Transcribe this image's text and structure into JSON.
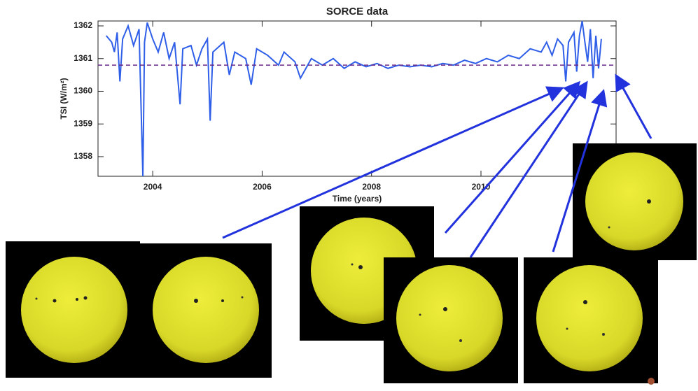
{
  "chart_data": {
    "type": "line",
    "title": "SORCE data",
    "x_label": "Time (years)",
    "y_label": "TSI (W/m²)",
    "x": [
      2003.15,
      2003.25,
      2003.3,
      2003.35,
      2003.4,
      2003.45,
      2003.55,
      2003.65,
      2003.75,
      2003.82,
      2003.85,
      2003.9,
      2004.0,
      2004.1,
      2004.2,
      2004.3,
      2004.4,
      2004.5,
      2004.55,
      2004.7,
      2004.8,
      2004.9,
      2005.0,
      2005.05,
      2005.1,
      2005.3,
      2005.4,
      2005.5,
      2005.7,
      2005.8,
      2005.9,
      2006.1,
      2006.3,
      2006.4,
      2006.6,
      2006.7,
      2006.9,
      2007.1,
      2007.3,
      2007.5,
      2007.7,
      2007.9,
      2008.1,
      2008.3,
      2008.5,
      2008.7,
      2008.9,
      2009.1,
      2009.3,
      2009.5,
      2009.7,
      2009.9,
      2010.1,
      2010.3,
      2010.5,
      2010.7,
      2010.9,
      2011.1,
      2011.2,
      2011.3,
      2011.4,
      2011.5,
      2011.55,
      2011.6,
      2011.7,
      2011.75,
      2011.8,
      2011.85,
      2011.9,
      2011.95,
      2012.0,
      2012.05,
      2012.1,
      2012.15,
      2012.2
    ],
    "values": [
      1361.7,
      1361.5,
      1361.2,
      1361.8,
      1360.3,
      1361.6,
      1362.0,
      1361.4,
      1361.9,
      1357.4,
      1361.5,
      1362.1,
      1361.6,
      1361.2,
      1361.8,
      1361.0,
      1361.5,
      1359.6,
      1361.3,
      1361.4,
      1360.8,
      1361.3,
      1361.6,
      1359.1,
      1361.2,
      1361.5,
      1360.5,
      1361.2,
      1361.0,
      1360.2,
      1361.3,
      1361.1,
      1360.8,
      1361.2,
      1360.9,
      1360.4,
      1361.0,
      1360.8,
      1361.0,
      1360.7,
      1360.9,
      1360.75,
      1360.85,
      1360.7,
      1360.8,
      1360.75,
      1360.8,
      1360.75,
      1360.85,
      1360.8,
      1360.95,
      1360.85,
      1361.0,
      1360.9,
      1361.1,
      1361.0,
      1361.3,
      1361.2,
      1361.5,
      1361.1,
      1361.6,
      1361.4,
      1360.3,
      1361.5,
      1361.8,
      1360.6,
      1361.7,
      1362.15,
      1361.5,
      1360.9,
      1361.9,
      1360.4,
      1361.7,
      1360.7,
      1361.6
    ],
    "color": "#2f5fe8",
    "reference_line": 1360.8,
    "reference_color": "#6a2a8a",
    "xlim": [
      2003.0,
      2012.47
    ],
    "xticks": [
      2004,
      2006,
      2008,
      2010
    ],
    "ylim": [
      1357.4,
      1362.15
    ],
    "yticks": [
      1358,
      1359,
      1360,
      1361,
      1362
    ]
  }
}
